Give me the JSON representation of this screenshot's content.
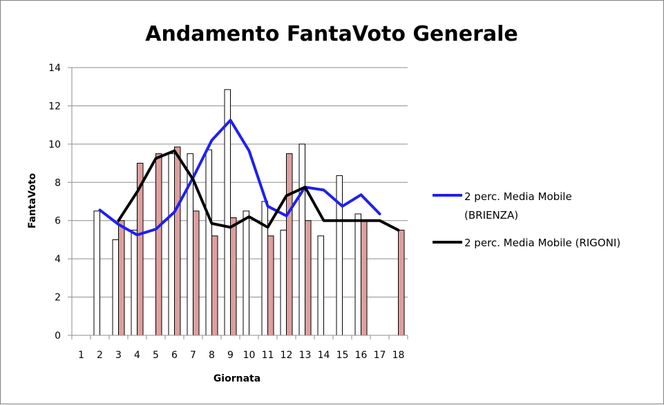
{
  "chart_data": {
    "type": "bar",
    "title": "Andamento FantaVoto Generale",
    "xlabel": "Giornata",
    "ylabel": "FantaVoto",
    "ylim": [
      0,
      14
    ],
    "yticks": [
      0,
      2,
      4,
      6,
      8,
      10,
      12,
      14
    ],
    "categories": [
      "1",
      "2",
      "3",
      "4",
      "5",
      "6",
      "7",
      "8",
      "9",
      "10",
      "11",
      "12",
      "13",
      "14",
      "15",
      "16",
      "17",
      "18"
    ],
    "bar_series": [
      {
        "color": "#ffffff",
        "stroke": "#000000",
        "values": [
          null,
          6.5,
          5,
          5.5,
          null,
          9.5,
          9.5,
          9.7,
          12.85,
          6.5,
          7,
          5.5,
          10,
          5.2,
          8.35,
          6.35,
          null,
          null
        ]
      },
      {
        "color": "#dca09e",
        "stroke": "#000000",
        "values": [
          null,
          null,
          6,
          9,
          9.5,
          9.85,
          6.5,
          5.2,
          6.15,
          null,
          5.2,
          9.5,
          6,
          null,
          null,
          6,
          null,
          5.5
        ]
      }
    ],
    "series": [
      {
        "name": "2 perc. Media Mobile (BRIENZA)",
        "color": "#1f1ff2",
        "values": [
          null,
          6.55,
          5.8,
          5.25,
          5.55,
          6.45,
          8.25,
          10.2,
          11.25,
          9.65,
          6.75,
          6.25,
          7.75,
          7.6,
          6.75,
          7.35,
          6.35,
          null
        ]
      },
      {
        "name": "2 perc. Media Mobile (RIGONI)",
        "color": "#000000",
        "values": [
          null,
          null,
          6.0,
          7.5,
          9.25,
          9.65,
          8.15,
          5.85,
          5.65,
          6.2,
          5.65,
          7.3,
          7.75,
          6.0,
          6.0,
          6.0,
          6.0,
          5.5
        ]
      }
    ],
    "legend_position": "right",
    "grid": true
  }
}
